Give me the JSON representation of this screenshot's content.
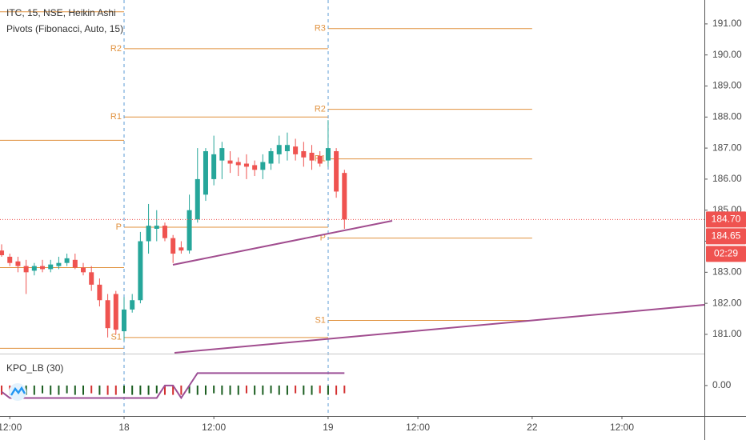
{
  "chart_data": {
    "type": "candlestick",
    "title": "ITC, 15, NSE, Heikin Ashi",
    "subtitle": "Pivots (Fibonacci, Auto, 15)",
    "up_color": "#26a69a",
    "down_color": "#ef5350",
    "x": [
      -15,
      -14,
      -13,
      -12,
      -11,
      -10,
      -9,
      -8,
      -7,
      -6,
      -5,
      -4,
      -3,
      -2,
      -1,
      0,
      1,
      2,
      3,
      4,
      5,
      6,
      7,
      8,
      9,
      10,
      11,
      12,
      13,
      14,
      15,
      16,
      17,
      18,
      19,
      20,
      21,
      22,
      23,
      24,
      25,
      26,
      27
    ],
    "open": [
      183.7,
      183.5,
      183.35,
      183.2,
      183.05,
      183.2,
      183.1,
      183.2,
      183.3,
      183.4,
      183.15,
      183.0,
      182.6,
      182.1,
      182.3,
      181.1,
      181.8,
      182.1,
      184.0,
      184.4,
      184.5,
      184.1,
      183.8,
      183.7,
      184.7,
      185.5,
      186.0,
      186.6,
      186.6,
      186.55,
      186.5,
      186.45,
      186.3,
      186.5,
      186.8,
      186.9,
      187.05,
      186.9,
      186.85,
      186.75,
      186.6,
      186.9,
      186.2
    ],
    "high": [
      183.9,
      183.6,
      183.5,
      183.4,
      183.3,
      183.4,
      183.4,
      183.5,
      183.6,
      183.6,
      183.3,
      183.2,
      182.8,
      182.3,
      182.4,
      182.2,
      182.3,
      184.3,
      185.2,
      185.0,
      184.6,
      184.2,
      184.0,
      185.5,
      187.0,
      187.0,
      187.4,
      187.2,
      186.9,
      186.7,
      186.8,
      186.6,
      186.8,
      187.0,
      187.4,
      187.5,
      187.3,
      187.2,
      187.1,
      186.9,
      187.9,
      187.0,
      186.3
    ],
    "low": [
      183.5,
      183.2,
      183.0,
      182.3,
      182.9,
      183.0,
      183.0,
      183.1,
      183.2,
      183.1,
      182.9,
      182.4,
      181.9,
      180.9,
      181.0,
      180.8,
      181.7,
      182.0,
      183.6,
      184.0,
      184.0,
      183.3,
      183.6,
      183.6,
      184.6,
      185.3,
      185.8,
      186.0,
      186.2,
      186.1,
      186.0,
      186.1,
      186.0,
      186.3,
      186.5,
      186.6,
      186.6,
      186.4,
      186.3,
      186.4,
      186.4,
      185.4,
      184.4
    ],
    "close": [
      183.55,
      183.3,
      183.2,
      183.0,
      183.2,
      183.1,
      183.25,
      183.3,
      183.45,
      183.15,
      183.0,
      182.6,
      182.1,
      181.2,
      181.15,
      181.8,
      182.1,
      184.0,
      184.5,
      184.5,
      184.1,
      183.6,
      183.7,
      185.0,
      186.0,
      186.9,
      186.8,
      187.0,
      186.5,
      186.45,
      186.4,
      186.3,
      186.55,
      186.9,
      187.1,
      187.1,
      186.8,
      186.7,
      186.6,
      186.5,
      187.0,
      185.6,
      184.7
    ],
    "xlim": [
      -15.2,
      71.1
    ],
    "xticks": [
      {
        "value": -14,
        "label": "12:00"
      },
      {
        "value": 0,
        "label": "18"
      },
      {
        "value": 11,
        "label": "12:00"
      },
      {
        "value": 25,
        "label": "19"
      },
      {
        "value": 36,
        "label": "12:00"
      },
      {
        "value": 50,
        "label": "22"
      },
      {
        "value": 61,
        "label": "12:00"
      }
    ],
    "ylim": [
      180.38,
      191.77
    ],
    "yticks": [
      {
        "value": 181,
        "label": "181.00"
      },
      {
        "value": 182,
        "label": "182.00"
      },
      {
        "value": 183,
        "label": "183.00"
      },
      {
        "value": 184,
        "label": "184.00"
      },
      {
        "value": 185,
        "label": "185.00"
      },
      {
        "value": 186,
        "label": "186.00"
      },
      {
        "value": 187,
        "label": "187.00"
      },
      {
        "value": 188,
        "label": "188.00"
      },
      {
        "value": 189,
        "label": "189.00"
      },
      {
        "value": 190,
        "label": "190.00"
      },
      {
        "value": 191,
        "label": "191.00"
      }
    ],
    "pivot_color": "#e0913d",
    "pivots": [
      {
        "value": 191.39,
        "x": [
          -15.2,
          0
        ]
      },
      {
        "value": 187.25,
        "x": [
          -15.2,
          0
        ]
      },
      {
        "value": 183.15,
        "x": [
          -15.2,
          0
        ]
      },
      {
        "value": 180.55,
        "x": [
          -15.2,
          0
        ]
      },
      {
        "label": "R2",
        "value": 190.2,
        "x": [
          0,
          25
        ]
      },
      {
        "label": "R1",
        "value": 188.0,
        "x": [
          0,
          25
        ]
      },
      {
        "label": "P",
        "value": 184.45,
        "x": [
          0,
          25
        ]
      },
      {
        "label": "S1",
        "value": 180.9,
        "x": [
          0,
          25
        ]
      },
      {
        "label": "R3",
        "value": 190.85,
        "x": [
          25,
          50
        ]
      },
      {
        "label": "R2",
        "value": 188.25,
        "x": [
          25,
          50
        ]
      },
      {
        "label": "R1",
        "value": 186.65,
        "x": [
          25,
          50
        ]
      },
      {
        "label": "P",
        "value": 184.1,
        "x": [
          25,
          50
        ]
      },
      {
        "label": "S1",
        "value": 181.45,
        "x": [
          25,
          50
        ]
      }
    ],
    "last_price": {
      "value": 184.7,
      "label": "184.70"
    },
    "price_tag": {
      "value": 184.65,
      "label": "184.65"
    },
    "countdown": "02:29",
    "indicator": {
      "title": "KPO_LB (30)",
      "ylim": [
        -0.98,
        1.0
      ],
      "yticks": [
        {
          "value": 0,
          "label": "0.00"
        }
      ],
      "line_color": "#9c4f96",
      "values": [
        -0.2,
        -0.4,
        -0.4,
        -0.4,
        -0.4,
        -0.4,
        -0.4,
        -0.4,
        -0.4,
        -0.4,
        -0.4,
        -0.4,
        -0.4,
        -0.4,
        -0.4,
        -0.4,
        -0.4,
        -0.4,
        -0.4,
        -0.4,
        0,
        0,
        -0.4,
        0,
        0.4,
        0.4,
        0.4,
        0.4,
        0.4,
        0.4,
        0.4,
        0.4,
        0.4,
        0.4,
        0.4,
        0.4,
        0.4,
        0.4,
        0.4,
        0.4,
        0.4,
        0.4,
        0.4
      ],
      "hist_values": [
        -0.3,
        -0.3,
        -0.25,
        -0.3,
        -0.3,
        -0.25,
        -0.3,
        -0.3,
        -0.25,
        -0.3,
        -0.3,
        -0.25,
        -0.3,
        -0.3,
        -0.3,
        -0.25,
        -0.3,
        -0.3,
        -0.3,
        -0.25,
        -0.3,
        -0.3,
        -0.3,
        -0.25,
        -0.3,
        -0.3,
        -0.25,
        -0.3,
        -0.3,
        -0.3,
        -0.25,
        -0.3,
        -0.3,
        -0.25,
        -0.3,
        -0.3,
        -0.25,
        -0.3,
        -0.3,
        -0.25,
        -0.3,
        -0.3,
        -0.25
      ],
      "hist_colors": [
        "#d32f2f",
        "#d32f2f",
        "#1b5e20",
        "#1b5e20",
        "#1b5e20",
        "#1b5e20",
        "#1b5e20",
        "#1b5e20",
        "#1b5e20",
        "#1b5e20",
        "#1b5e20",
        "#d32f2f",
        "#1b5e20",
        "#d32f2f",
        "#d32f2f",
        "#1b5e20",
        "#1b5e20",
        "#1b5e20",
        "#1b5e20",
        "#1b5e20",
        "#d32f2f",
        "#d32f2f",
        "#d32f2f",
        "#1b5e20",
        "#1b5e20",
        "#1b5e20",
        "#1b5e20",
        "#1b5e20",
        "#1b5e20",
        "#1b5e20",
        "#d32f2f",
        "#1b5e20",
        "#1b5e20",
        "#1b5e20",
        "#1b5e20",
        "#1b5e20",
        "#d32f2f",
        "#1b5e20",
        "#1b5e20",
        "#d32f2f",
        "#1b5e20",
        "#d32f2f",
        "#d32f2f"
      ]
    }
  }
}
